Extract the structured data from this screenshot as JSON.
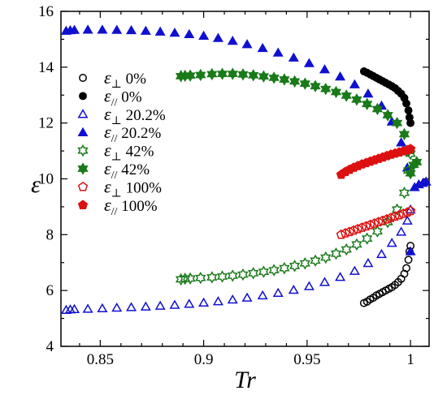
{
  "chart_data": {
    "type": "scatter",
    "xlabel": "Tr",
    "ylabel": "ε",
    "xlim": [
      0.831,
      1.009
    ],
    "ylim": [
      4,
      16
    ],
    "x_ticks": [
      "0.85",
      "0.9",
      "0.95",
      "1"
    ],
    "y_ticks": [
      "4",
      "6",
      "8",
      "10",
      "12",
      "14",
      "16"
    ],
    "x_tick_values": [
      0.85,
      0.9,
      0.95,
      1.0
    ],
    "y_tick_values": [
      4,
      6,
      8,
      10,
      12,
      14,
      16
    ],
    "grid": false,
    "legend_position": "left",
    "series": [
      {
        "name": "ε⊥ 0%",
        "prefix": "ε",
        "sub": "⊥",
        "pct": " 0%",
        "marker": "circle",
        "filled": false,
        "color": "#000000",
        "x": [
          0.9775,
          0.979,
          0.9805,
          0.982,
          0.9835,
          0.985,
          0.9865,
          0.988,
          0.9895,
          0.991,
          0.9925,
          0.994,
          0.9955,
          0.997,
          0.998,
          0.999,
          0.9995,
          1.0
        ],
        "y": [
          5.55,
          5.6,
          5.68,
          5.74,
          5.82,
          5.88,
          5.94,
          6.0,
          6.06,
          6.12,
          6.2,
          6.3,
          6.42,
          6.6,
          6.8,
          7.1,
          7.4,
          7.6
        ]
      },
      {
        "name": "ε// 0%",
        "prefix": "ε",
        "sub": "//",
        "pct": " 0%",
        "marker": "circle",
        "filled": true,
        "color": "#000000",
        "x": [
          0.9775,
          0.979,
          0.9805,
          0.982,
          0.9835,
          0.985,
          0.9865,
          0.988,
          0.9895,
          0.991,
          0.9925,
          0.994,
          0.9955,
          0.997,
          0.998,
          0.999,
          0.9995,
          1.0
        ],
        "y": [
          13.85,
          13.8,
          13.74,
          13.68,
          13.62,
          13.56,
          13.5,
          13.44,
          13.38,
          13.32,
          13.25,
          13.15,
          13.05,
          12.9,
          12.7,
          12.45,
          12.2,
          12.0
        ]
      },
      {
        "name": "ε⊥ 20.2%",
        "prefix": "ε",
        "sub": "⊥",
        "pct": " 20.2%",
        "marker": "triangle",
        "filled": false,
        "color": "#1010d0",
        "x": [
          0.8335,
          0.8355,
          0.8375,
          0.844,
          0.851,
          0.858,
          0.865,
          0.872,
          0.879,
          0.886,
          0.893,
          0.9,
          0.907,
          0.914,
          0.921,
          0.9285,
          0.936,
          0.9435,
          0.951,
          0.9585,
          0.966,
          0.973,
          0.9795,
          0.986,
          0.991,
          0.9955,
          0.9985,
          1.0
        ],
        "y": [
          5.3,
          5.32,
          5.33,
          5.34,
          5.36,
          5.38,
          5.4,
          5.42,
          5.45,
          5.48,
          5.52,
          5.56,
          5.61,
          5.67,
          5.74,
          5.82,
          5.91,
          6.02,
          6.15,
          6.3,
          6.48,
          6.7,
          6.98,
          7.3,
          7.7,
          8.1,
          8.5,
          8.9
        ]
      },
      {
        "name": "ε// 20.2%",
        "prefix": "ε",
        "sub": "//",
        "pct": " 20.2%",
        "marker": "triangle",
        "filled": true,
        "color": "#1010d0",
        "x": [
          0.8335,
          0.8355,
          0.8375,
          0.844,
          0.851,
          0.858,
          0.865,
          0.872,
          0.879,
          0.886,
          0.893,
          0.9,
          0.907,
          0.914,
          0.921,
          0.9285,
          0.936,
          0.9435,
          0.951,
          0.9585,
          0.966,
          0.973,
          0.9795,
          0.986,
          0.991,
          0.9955,
          0.9985,
          1.0,
          1.002,
          1.004,
          1.006,
          1.0075
        ],
        "y": [
          15.3,
          15.32,
          15.33,
          15.34,
          15.34,
          15.33,
          15.32,
          15.3,
          15.27,
          15.23,
          15.18,
          15.12,
          15.04,
          14.94,
          14.82,
          14.68,
          14.52,
          14.34,
          14.14,
          13.92,
          13.66,
          13.38,
          13.05,
          12.62,
          12.05,
          11.3,
          10.4,
          7.4,
          9.7,
          9.8,
          9.85,
          9.9
        ]
      },
      {
        "name": "ε⊥ 42%",
        "prefix": "ε",
        "sub": "⊥",
        "pct": " 42%",
        "marker": "star",
        "filled": false,
        "color": "#1a7a1a",
        "x": [
          0.889,
          0.891,
          0.8935,
          0.8985,
          0.904,
          0.909,
          0.914,
          0.919,
          0.924,
          0.929,
          0.934,
          0.939,
          0.944,
          0.949,
          0.954,
          0.959,
          0.964,
          0.969,
          0.974,
          0.979,
          0.984,
          0.989,
          0.9935,
          0.997,
          0.999,
          1.0
        ],
        "y": [
          6.4,
          6.42,
          6.43,
          6.45,
          6.47,
          6.5,
          6.53,
          6.57,
          6.62,
          6.67,
          6.73,
          6.8,
          6.88,
          6.97,
          7.07,
          7.18,
          7.32,
          7.47,
          7.65,
          7.86,
          8.12,
          8.45,
          8.9,
          9.5,
          10.3,
          10.9
        ]
      },
      {
        "name": "ε// 42%",
        "prefix": "ε",
        "sub": "//",
        "pct": " 42%",
        "marker": "star",
        "filled": true,
        "color": "#1a7a1a",
        "x": [
          0.889,
          0.891,
          0.8935,
          0.8985,
          0.904,
          0.909,
          0.914,
          0.919,
          0.924,
          0.929,
          0.934,
          0.939,
          0.944,
          0.949,
          0.954,
          0.959,
          0.964,
          0.969,
          0.974,
          0.979,
          0.984,
          0.989,
          0.9935,
          0.997,
          0.999,
          1.0,
          1.0015,
          1.003
        ],
        "y": [
          13.68,
          13.69,
          13.7,
          13.72,
          13.75,
          13.76,
          13.76,
          13.74,
          13.71,
          13.67,
          13.62,
          13.56,
          13.49,
          13.41,
          13.32,
          13.22,
          13.11,
          12.98,
          12.84,
          12.68,
          12.5,
          12.28,
          12.0,
          11.6,
          11.0,
          10.2,
          10.5,
          10.6
        ]
      },
      {
        "name": "ε⊥ 100%",
        "prefix": "ε",
        "sub": "⊥",
        "pct": " 100%",
        "marker": "pentagon",
        "filled": false,
        "color": "#dd1010",
        "x": [
          0.9665,
          0.9685,
          0.9705,
          0.9725,
          0.9745,
          0.9765,
          0.9785,
          0.9805,
          0.9825,
          0.9845,
          0.9865,
          0.9885,
          0.9905,
          0.9925,
          0.9945,
          0.9965,
          0.9985,
          1.0
        ],
        "y": [
          8.0,
          8.05,
          8.1,
          8.15,
          8.2,
          8.25,
          8.3,
          8.35,
          8.4,
          8.45,
          8.5,
          8.55,
          8.6,
          8.65,
          8.7,
          8.75,
          8.8,
          8.85
        ]
      },
      {
        "name": "ε// 100%",
        "prefix": "ε",
        "sub": "//",
        "pct": " 100%",
        "marker": "pentagon",
        "filled": true,
        "color": "#dd1010",
        "x": [
          0.9665,
          0.9685,
          0.9705,
          0.9725,
          0.9745,
          0.9765,
          0.9785,
          0.9805,
          0.9825,
          0.9845,
          0.9865,
          0.9885,
          0.9905,
          0.9925,
          0.9945,
          0.9965,
          0.9985,
          1.0
        ],
        "y": [
          10.15,
          10.25,
          10.33,
          10.4,
          10.46,
          10.52,
          10.57,
          10.62,
          10.67,
          10.72,
          10.77,
          10.82,
          10.87,
          10.91,
          10.95,
          10.99,
          11.03,
          11.07
        ]
      }
    ]
  }
}
